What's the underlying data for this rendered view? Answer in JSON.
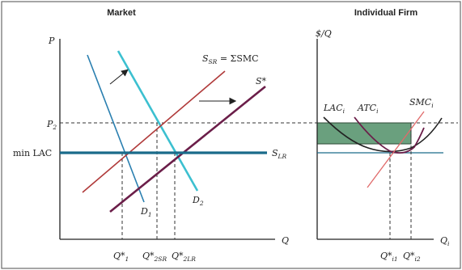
{
  "market": {
    "title": "Market",
    "y_axis": "P",
    "x_axis": "Q",
    "p2": "P",
    "p2_sub": "2",
    "min_lac": "min LAC",
    "s_sr": "S",
    "s_sr_sub": "SR",
    "s_sr_tail": " = ΣSMC",
    "s_star": "S*",
    "s_lr": "S",
    "s_lr_sub": "LR",
    "d1": "D",
    "d1_sub": "1",
    "d2": "D",
    "d2_sub": "2",
    "q1": "Q*",
    "q1_sub": "1",
    "q2sr": "Q*",
    "q2sr_sub": "2SR",
    "q2lr": "Q*",
    "q2lr_sub": "2LR"
  },
  "firm": {
    "title": "Individual Firm",
    "y_axis": "$/Q",
    "x_axis": "Q",
    "x_axis_sub": "i",
    "lac": "LAC",
    "lac_sub": "i",
    "atc": "ATC",
    "atc_sub": "i",
    "smc": "SMC",
    "smc_sub": "i",
    "qi1": "Q*",
    "qi1_sub": "i1",
    "qi2": "Q*",
    "qi2_sub": "i2"
  },
  "colors": {
    "frame": "#6a6a6a",
    "axis": "#222222",
    "supply_sr": "#b03a3a",
    "supply_star": "#6b1e49",
    "supply_lr": "#1a6b8a",
    "demand1": "#2a7fb0",
    "demand2": "#3cc0d0",
    "profit_fill": "#6aa07e",
    "dashed": "#333333"
  }
}
